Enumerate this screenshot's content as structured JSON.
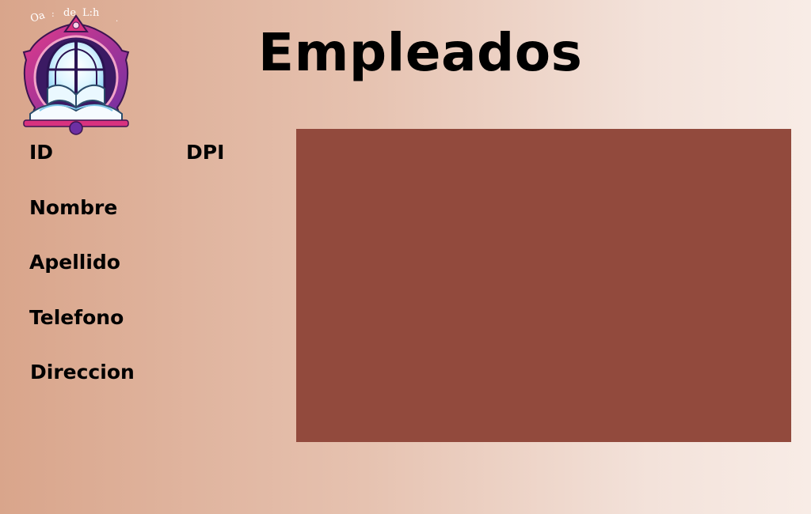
{
  "header": {
    "title": "Empleados",
    "logo_text": "Oa : de L:h ."
  },
  "form": {
    "labels": {
      "id": "ID",
      "dpi": "DPI",
      "nombre": "Nombre",
      "apellido": "Apellido",
      "telefono": "Telefono",
      "direccion": "Direccion"
    }
  },
  "panel": {
    "color": "#924a3d"
  },
  "colors": {
    "background_left": "#d9a58b",
    "background_right": "#f8ece6",
    "logo_magenta": "#d8327f",
    "logo_purple": "#6d2fa3"
  },
  "icons": {
    "logo": "library-book-window-logo-icon"
  }
}
